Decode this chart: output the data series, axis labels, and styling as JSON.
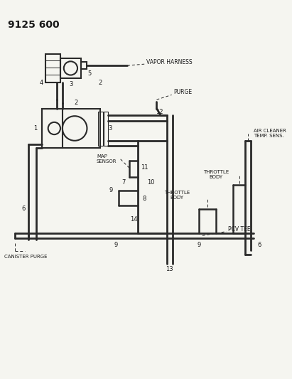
{
  "title": "9125 600",
  "background_color": "#f5f5f0",
  "line_color": "#2a2a2a",
  "text_color": "#1a1a1a",
  "fig_width": 4.11,
  "fig_height": 5.33,
  "dpi": 100,
  "labels": {
    "vapor_harness": "VAPOR HARNESS",
    "map_sensor": "MAP\nSENSOR",
    "purge": "PURGE",
    "air_cleaner": "AIR CLEANER\nTEMP. SENS.",
    "throttle_body_1": "THROTTLE\nBODY",
    "throttle_body_2": "THROTTLE\nBODY",
    "pcv_tee": "PCV TEE",
    "canister_purge": "CANISTER PURGE"
  }
}
